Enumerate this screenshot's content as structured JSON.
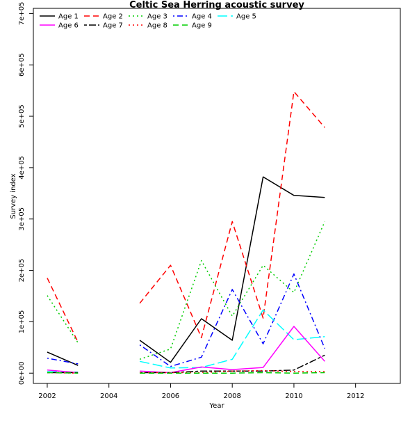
{
  "chart_data": {
    "type": "line",
    "title": "Celtic Sea Herring acoustic survey",
    "xlabel": "Year",
    "ylabel": "Survey index",
    "xlim": [
      2001.55,
      2013.45
    ],
    "ylim": [
      -20000,
      710000
    ],
    "x_ticks": [
      2002,
      2004,
      2006,
      2008,
      2010,
      2012
    ],
    "x_tick_labels": [
      "2002",
      "2004",
      "2006",
      "2008",
      "2010",
      "2012"
    ],
    "y_ticks": [
      0,
      100000,
      200000,
      300000,
      400000,
      500000,
      600000,
      700000
    ],
    "y_tick_labels": [
      "0e+00",
      "1e+05",
      "2e+05",
      "3e+05",
      "4e+05",
      "5e+05",
      "6e+05",
      "7e+05"
    ],
    "grid": false,
    "legend_position": "top-left",
    "x": [
      2002,
      2003,
      2004,
      2005,
      2006,
      2007,
      2008,
      2009,
      2010,
      2011
    ],
    "series": [
      {
        "name": "Age 1",
        "color": "#000000",
        "dash": "solid",
        "values": [
          41000,
          15000,
          null,
          64000,
          21000,
          106000,
          64000,
          382000,
          346000,
          342000
        ]
      },
      {
        "name": "Age 2",
        "color": "#ff0000",
        "dash": "dashed",
        "values": [
          185000,
          60000,
          null,
          136000,
          210000,
          69000,
          295000,
          107000,
          548000,
          478000
        ]
      },
      {
        "name": "Age 3",
        "color": "#00cd00",
        "dash": "dotted",
        "values": [
          151000,
          59000,
          null,
          27000,
          47000,
          219000,
          111000,
          210000,
          157000,
          295000
        ]
      },
      {
        "name": "Age 4",
        "color": "#0000ff",
        "dash": "dotdash",
        "values": [
          29000,
          18000,
          null,
          55000,
          13000,
          31000,
          163000,
          57000,
          193000,
          48000
        ]
      },
      {
        "name": "Age 5",
        "color": "#00ffff",
        "dash": "longdash",
        "values": [
          3000,
          2000,
          null,
          23000,
          10000,
          11000,
          27000,
          123000,
          65000,
          71000
        ]
      },
      {
        "name": "Age 6",
        "color": "#ff00ff",
        "dash": "solid",
        "values": [
          6000,
          1000,
          null,
          4000,
          1000,
          12000,
          7000,
          11000,
          91000,
          23000
        ]
      },
      {
        "name": "Age 7",
        "color": "#000000",
        "dash": "twodash",
        "values": [
          1000,
          1000,
          null,
          1000,
          1000,
          4000,
          4000,
          4000,
          6000,
          35000
        ]
      },
      {
        "name": "Age 8",
        "color": "#ff0000",
        "dash": "dotted",
        "values": [
          1000,
          0,
          null,
          1000,
          1000,
          1000,
          4000,
          5000,
          3000,
          3000
        ]
      },
      {
        "name": "Age 9",
        "color": "#00cd00",
        "dash": "dashed",
        "values": [
          1000,
          0,
          null,
          0,
          0,
          0,
          0,
          1000,
          0,
          1000
        ]
      }
    ]
  }
}
